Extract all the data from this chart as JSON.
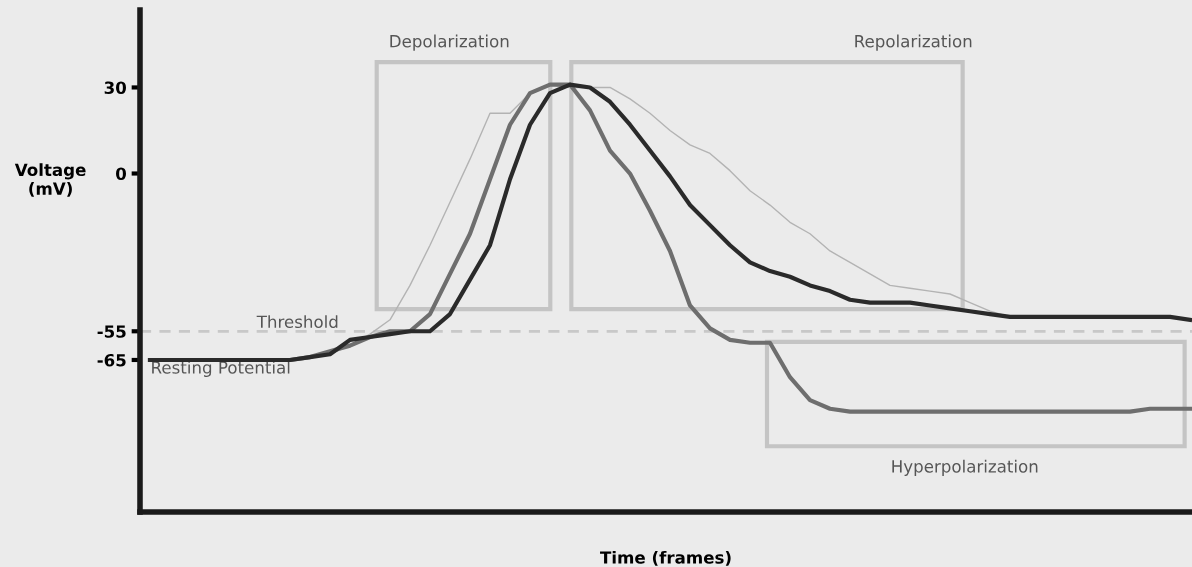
{
  "chart_data": {
    "type": "line",
    "xlabel": "Time (frames)",
    "ylabel": "Voltage\n(mV)",
    "categories": [
      null,
      null,
      null,
      null,
      null,
      null,
      null,
      null,
      null,
      null,
      null,
      null,
      null,
      null,
      null,
      null,
      null,
      null,
      null,
      null,
      null,
      null,
      null,
      null,
      null,
      null,
      null,
      null,
      null,
      null,
      null,
      null,
      null,
      null,
      null,
      null,
      null,
      null,
      null,
      null,
      null,
      null,
      null,
      null,
      null,
      null,
      null,
      null,
      null,
      null,
      null,
      null,
      null
    ],
    "series": [
      {
        "color": "#b3b3b3",
        "values": [
          -65,
          -65,
          -65,
          -65,
          -65,
          -65,
          -65,
          -65,
          -64,
          -63,
          -60,
          -56,
          -51,
          -39,
          -25,
          -10,
          5,
          21,
          21,
          28,
          31,
          30,
          30,
          30,
          26,
          21,
          15,
          10,
          7,
          1,
          -6,
          -11,
          -17,
          -21,
          -27,
          -31,
          -35,
          -39,
          -40,
          -41,
          -42,
          -45,
          -48,
          -50,
          -50,
          -50,
          -50,
          -50,
          -50,
          -50,
          -50,
          -50,
          -51
        ]
      },
      {
        "color": "#6e6e6e",
        "values": [
          -65,
          -65,
          -65,
          -65,
          -65,
          -65,
          -65,
          -65,
          -64,
          -62,
          -60,
          -57,
          -55,
          -55,
          -49,
          -35,
          -21,
          -2,
          17,
          28,
          31,
          31,
          22,
          8,
          0,
          -13,
          -27,
          -46,
          -54,
          -58,
          -59,
          -59,
          -71,
          -79,
          -82,
          -83,
          -83,
          -83,
          -83,
          -83,
          -83,
          -83,
          -83,
          -83,
          -83,
          -83,
          -83,
          -83,
          -83,
          -83,
          -82,
          -82,
          -82
        ]
      },
      {
        "color": "#2a2a2a",
        "values": [
          -65,
          -65,
          -65,
          -65,
          -65,
          -65,
          -65,
          -65,
          -64,
          -63,
          -58,
          -57,
          -56,
          -55,
          -55,
          -49,
          -37,
          -25,
          -2,
          17,
          28,
          31,
          30,
          25,
          17,
          8,
          -1,
          -11,
          -18,
          -25,
          -31,
          -34,
          -36,
          -39,
          -41,
          -44,
          -45,
          -45,
          -45,
          -46,
          -47,
          -48,
          -49,
          -50,
          -50,
          -50,
          -50,
          -50,
          -50,
          -50,
          -50,
          -50,
          -51
        ]
      }
    ],
    "ylim": [
      -118,
      57
    ],
    "yticks": [
      30,
      0,
      -55,
      -65
    ],
    "ref_lines": [
      {
        "axis": "y",
        "value": -55,
        "label": "Threshold",
        "color": "#c8c8c8",
        "line_style": "dashed"
      }
    ],
    "annotations": [
      "Resting Potential",
      "Depolarization",
      "Repolarization",
      "Hyperpolarization"
    ],
    "tick_labels": "y",
    "grid": false,
    "legend": false,
    "line_style": "solid",
    "marker": "none"
  }
}
